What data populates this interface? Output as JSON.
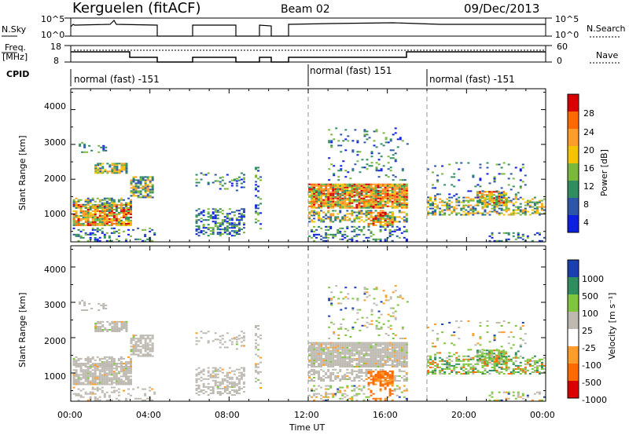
{
  "header": {
    "station": "Kerguelen (fitACF)",
    "beam": "Beam 02",
    "date": "09/Dec/2013"
  },
  "panels": {
    "nsky": {
      "label": "N.Sky",
      "ticks": [
        "10^5",
        "10^0"
      ],
      "right_label": "N.Search",
      "right_ticks": [
        "10^5",
        "10^0"
      ]
    },
    "freq": {
      "label_top": "Freq.",
      "label_bottom": "[MHz]",
      "ticks": [
        "18",
        "8"
      ],
      "right_label": "Nave",
      "right_ticks": [
        "60",
        "0"
      ]
    },
    "cpid": {
      "label": "CPID",
      "segments": [
        "normal (fast) -151",
        "normal (fast) 151",
        "normal (fast) -151"
      ]
    }
  },
  "chart_data": [
    {
      "type": "heatmap",
      "name": "power",
      "ylabel": "Slant Range [km]",
      "xlabel": "Time UT",
      "y_ticks": [
        1000,
        2000,
        3000,
        4000
      ],
      "ylim": [
        200,
        4600
      ],
      "colorbar": {
        "label": "Power [dB]",
        "ticks": [
          4,
          8,
          12,
          16,
          20,
          24,
          28
        ],
        "range": [
          0,
          30
        ]
      },
      "data_blocks_utc": [
        [
          0,
          4.25
        ],
        [
          6.2,
          8.8
        ],
        [
          9.3,
          9.6
        ],
        [
          11.9,
          24
        ]
      ]
    },
    {
      "type": "heatmap",
      "name": "velocity",
      "ylabel": "Slant Range [km]",
      "xlabel": "Time UT",
      "y_ticks": [
        1000,
        2000,
        3000,
        4000
      ],
      "ylim": [
        200,
        4600
      ],
      "colorbar": {
        "label": "Velocity [m s⁻¹]",
        "ticks": [
          "1000",
          "500",
          "100",
          "25",
          "-25",
          "-100",
          "-500",
          "-1000"
        ]
      }
    }
  ],
  "x_ticks": [
    "00:00",
    "04:00",
    "08:00",
    "12:00",
    "16:00",
    "20:00",
    "00:00"
  ],
  "x_title": "Time UT",
  "colors": {
    "ground_scatter": "#bdb9b1"
  }
}
